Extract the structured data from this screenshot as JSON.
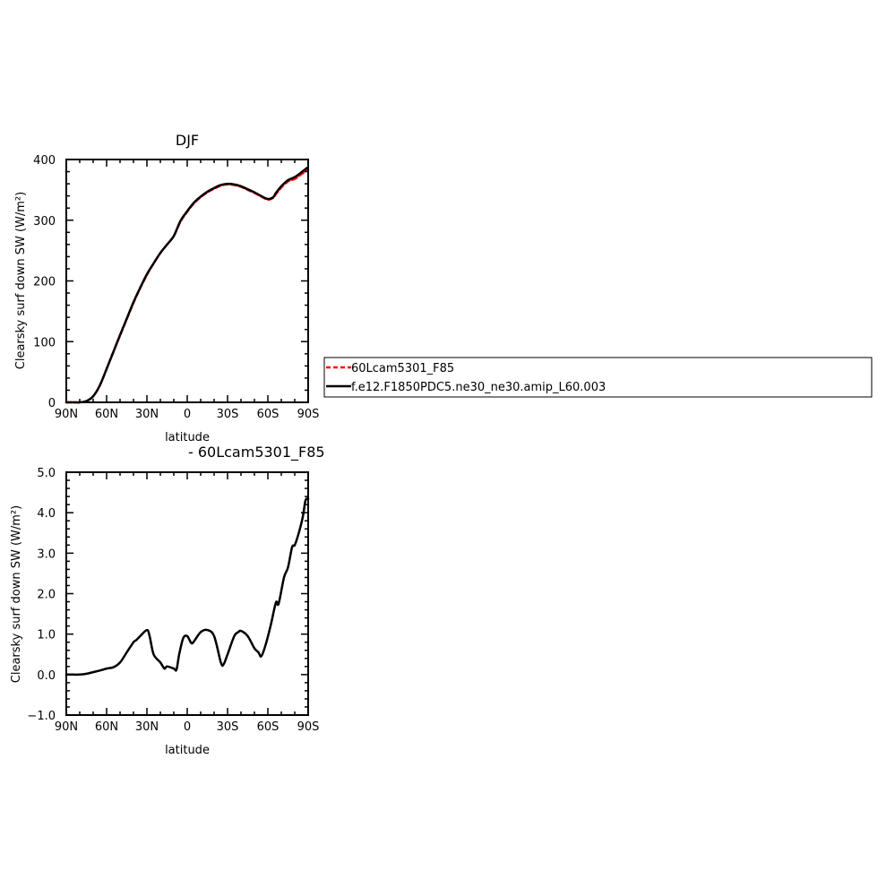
{
  "chart_data": [
    {
      "type": "line",
      "title": "DJF",
      "xlabel": "latitude",
      "ylabel": "Clearsky surf down SW (W/m²)",
      "xlim": [
        -90,
        90
      ],
      "ylim": [
        0,
        400
      ],
      "x_ticks": [
        -90,
        -60,
        -30,
        0,
        30,
        60,
        90
      ],
      "x_tick_labels": [
        "90N",
        "60N",
        "30N",
        "0",
        "30S",
        "60S",
        "90S"
      ],
      "y_ticks": [
        0,
        100,
        200,
        300,
        400
      ],
      "y_tick_labels": [
        "0",
        "100",
        "200",
        "300",
        "400"
      ],
      "series": [
        {
          "name": "60Lcam5301_F85",
          "color": "#ff0000",
          "dashed": true,
          "x": [
            -90,
            -85,
            -80,
            -75,
            -70,
            -65,
            -60,
            -55,
            -50,
            -45,
            -40,
            -35,
            -30,
            -25,
            -20,
            -15,
            -10,
            -5,
            0,
            5,
            10,
            15,
            20,
            25,
            30,
            35,
            40,
            45,
            50,
            55,
            60,
            64,
            66,
            70,
            75,
            80,
            85,
            89
          ],
          "values": [
            0,
            0,
            0,
            2,
            10,
            28,
            55,
            83,
            110,
            137,
            164,
            188,
            210,
            229,
            246,
            260,
            274,
            298,
            314,
            328,
            338,
            346,
            352,
            357,
            359,
            358,
            355,
            350,
            345,
            339,
            334,
            337,
            343,
            354,
            364,
            368,
            376,
            382
          ]
        },
        {
          "name": "f.e12.F1850PDC5.ne30_ne30.amip_L60.003",
          "color": "#000000",
          "dashed": false,
          "x": [
            -90,
            -85,
            -80,
            -75,
            -70,
            -65,
            -60,
            -55,
            -50,
            -45,
            -40,
            -35,
            -30,
            -25,
            -20,
            -15,
            -10,
            -5,
            0,
            5,
            10,
            15,
            20,
            25,
            30,
            35,
            40,
            45,
            50,
            55,
            60,
            64,
            66,
            70,
            75,
            80,
            85,
            89
          ],
          "values": [
            0,
            0,
            0,
            2,
            10,
            28,
            55,
            83,
            111,
            138,
            165,
            189,
            211,
            229,
            246,
            260,
            274,
            299,
            315,
            329,
            339,
            347,
            353,
            358,
            360,
            359,
            356,
            351,
            346,
            340,
            335,
            338,
            345,
            356,
            366,
            371,
            379,
            386
          ]
        }
      ],
      "legend": "right",
      "grid": false
    },
    {
      "type": "line",
      "title": "- 60Lcam5301_F85",
      "xlabel": "latitude",
      "ylabel": "Clearsky surf down SW (W/m²)",
      "xlim": [
        -90,
        90
      ],
      "ylim": [
        -1,
        5
      ],
      "x_ticks": [
        -90,
        -60,
        -30,
        0,
        30,
        60,
        90
      ],
      "x_tick_labels": [
        "90N",
        "60N",
        "30N",
        "0",
        "30S",
        "60S",
        "90S"
      ],
      "y_ticks": [
        -1,
        0,
        1,
        2,
        3,
        4,
        5
      ],
      "y_tick_labels": [
        "−1.0",
        "0.0",
        "1.0",
        "2.0",
        "3.0",
        "4.0",
        "5.0"
      ],
      "series": [
        {
          "color": "#000000",
          "dashed": false,
          "x": [
            -90,
            -85,
            -80,
            -75,
            -70,
            -65,
            -60,
            -55,
            -50,
            -45,
            -40,
            -38,
            -35,
            -30,
            -28,
            -25,
            -20,
            -17,
            -15,
            -10,
            -8,
            -6,
            -3,
            0,
            3,
            5,
            10,
            15,
            20,
            25,
            27,
            30,
            35,
            38,
            40,
            45,
            50,
            53,
            55,
            58,
            62,
            66,
            68,
            72,
            75,
            78,
            80,
            83,
            86,
            88,
            90
          ],
          "values": [
            0,
            0,
            0,
            0.02,
            0.06,
            0.1,
            0.15,
            0.18,
            0.3,
            0.55,
            0.8,
            0.85,
            0.95,
            1.1,
            0.95,
            0.5,
            0.3,
            0.15,
            0.2,
            0.15,
            0.12,
            0.5,
            0.9,
            0.95,
            0.78,
            0.82,
            1.05,
            1.1,
            0.95,
            0.3,
            0.25,
            0.5,
            0.95,
            1.05,
            1.08,
            0.95,
            0.65,
            0.55,
            0.45,
            0.7,
            1.2,
            1.78,
            1.75,
            2.4,
            2.65,
            3.15,
            3.2,
            3.5,
            3.9,
            4.3,
            4.35
          ]
        }
      ],
      "legend": "none",
      "grid": false
    }
  ]
}
